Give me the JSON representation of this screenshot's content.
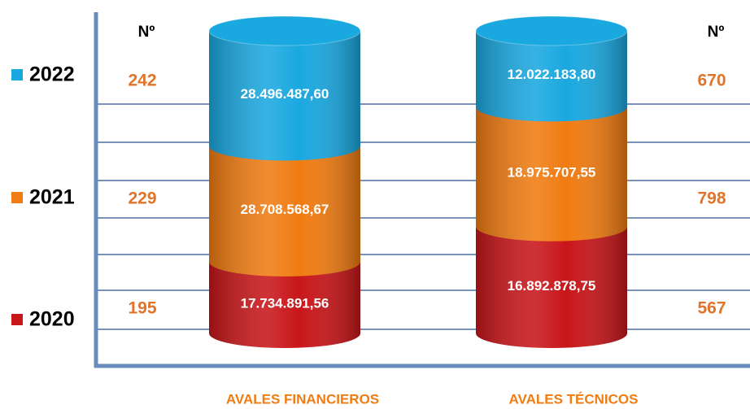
{
  "chart_data": {
    "type": "bar",
    "stacked": true,
    "categories": [
      "AVALES FINANCIEROS",
      "AVALES TÉCNICOS"
    ],
    "count_header": "Nº",
    "series": [
      {
        "name": "2020",
        "color": "#c8161a",
        "values": [
          17734891.56,
          16892878.75
        ],
        "value_labels": [
          "17.734.891,56",
          "16.892.878,75"
        ],
        "counts": [
          195,
          567
        ]
      },
      {
        "name": "2021",
        "color": "#f07c12",
        "values": [
          28708568.67,
          18975707.55
        ],
        "value_labels": [
          "28.708.568,67",
          "18.975.707,55"
        ],
        "counts": [
          229,
          798
        ]
      },
      {
        "name": "2022",
        "color": "#1aa8e0",
        "values": [
          28496487.6,
          12022183.8
        ],
        "value_labels": [
          "28.496.487,60",
          "12.022.183,80"
        ],
        "counts": [
          242,
          670
        ]
      }
    ]
  }
}
